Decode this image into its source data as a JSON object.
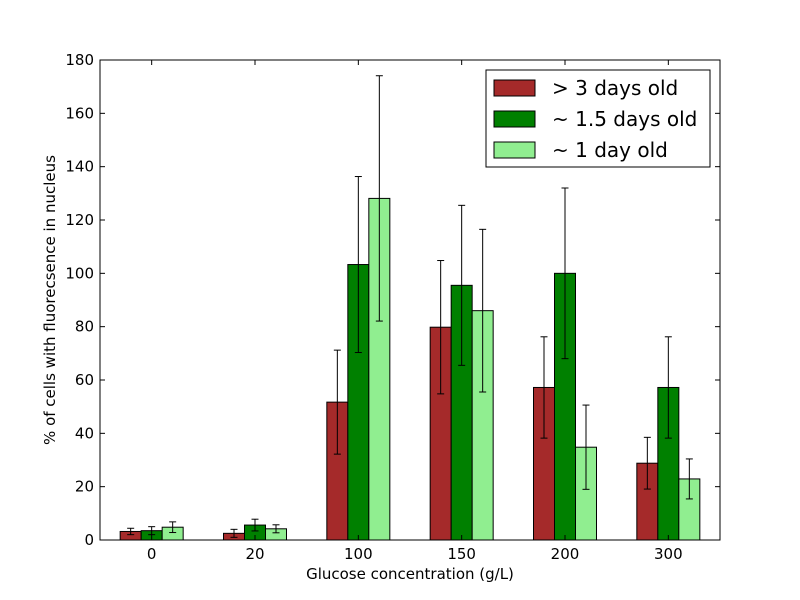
{
  "chart_data": {
    "type": "bar",
    "xlabel": "Glucose concentration (g/L)",
    "ylabel": "% of cells with fluorecsence in nucleus",
    "categories": [
      "0",
      "20",
      "100",
      "150",
      "200",
      "300"
    ],
    "ylim": [
      0,
      180
    ],
    "yticks": [
      0,
      20,
      40,
      60,
      80,
      100,
      120,
      140,
      160,
      180
    ],
    "grid": false,
    "legend_position": "top-right",
    "series": [
      {
        "name": "> 3 days old",
        "color": "#a52a2a",
        "values": [
          3.2,
          2.5,
          51.7,
          79.8,
          57.2,
          28.8
        ],
        "errors": [
          1.2,
          1.5,
          19.5,
          25.0,
          19.0,
          9.7
        ]
      },
      {
        "name": "~ 1.5 days old",
        "color": "#008000",
        "values": [
          3.5,
          5.6,
          103.3,
          95.5,
          100.0,
          57.2
        ],
        "errors": [
          1.5,
          2.2,
          33.0,
          30.0,
          32.0,
          19.0
        ]
      },
      {
        "name": "~ 1 day old",
        "color": "#90ee90",
        "values": [
          4.8,
          4.2,
          128.1,
          86.0,
          34.8,
          22.9
        ],
        "errors": [
          2.0,
          1.5,
          46.0,
          30.5,
          15.8,
          7.5
        ]
      }
    ]
  }
}
